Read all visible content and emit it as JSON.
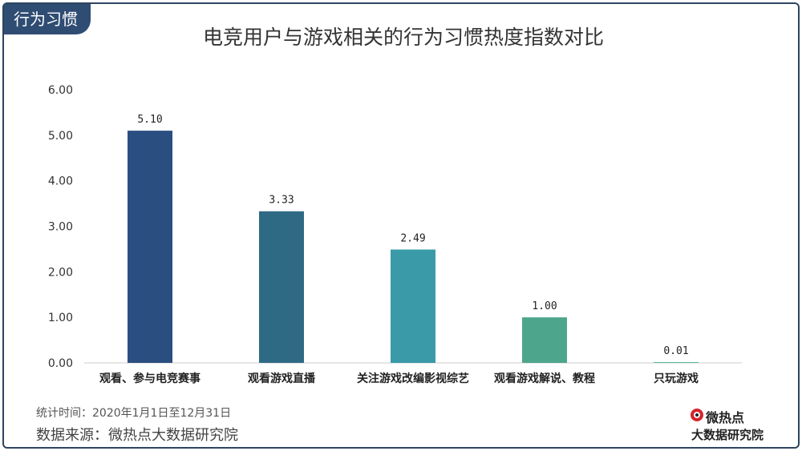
{
  "section_tag": "行为习惯",
  "chart_data": {
    "type": "bar",
    "title": "电竞用户与游戏相关的行为习惯热度指数对比",
    "categories": [
      "观看、参与电竞赛事",
      "观看游戏直播",
      "关注游戏改编影视综艺",
      "观看游戏解说、教程",
      "只玩游戏"
    ],
    "values": [
      5.1,
      3.33,
      2.49,
      1.0,
      0.01
    ],
    "value_labels": [
      "5.10",
      "3.33",
      "2.49",
      "1.00",
      "0.01"
    ],
    "colors": [
      "#2a4e80",
      "#2f6a85",
      "#3a9aa8",
      "#4da58c",
      "#5ab79a"
    ],
    "ylim": [
      0,
      6
    ],
    "y_ticks": [
      "0.00",
      "1.00",
      "2.00",
      "3.00",
      "4.00",
      "5.00",
      "6.00"
    ],
    "xlabel": "",
    "ylabel": "",
    "grid": false
  },
  "footnote": {
    "period": "统计时间：2020年1月1日至12月31日",
    "source": "数据来源：微热点大数据研究院"
  },
  "logo": {
    "brand": "微热点",
    "sub": "大数据研究院"
  }
}
